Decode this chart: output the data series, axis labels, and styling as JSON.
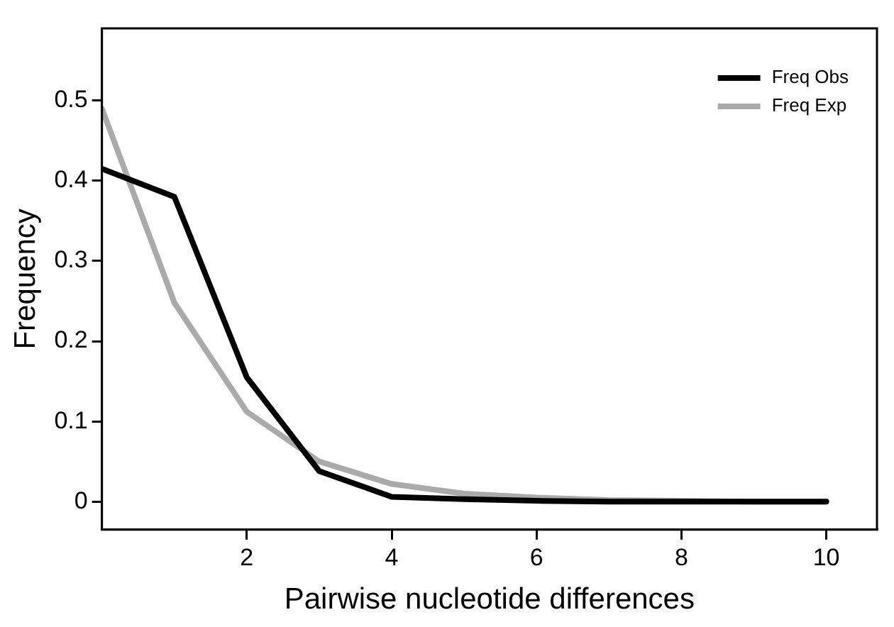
{
  "chart_data": {
    "type": "line",
    "xlabel": "Pairwise nucleotide differences",
    "ylabel": "Frequency",
    "x": [
      0,
      1,
      2,
      3,
      4,
      5,
      6,
      7,
      8,
      9,
      10
    ],
    "series": [
      {
        "name": "Freq Obs",
        "color": "#000000",
        "values": [
          0.415,
          0.38,
          0.155,
          0.038,
          0.006,
          0.003,
          0.001,
          0,
          0,
          0,
          0
        ]
      },
      {
        "name": "Freq Exp",
        "color": "#aaaaaa",
        "values": [
          0.49,
          0.248,
          0.112,
          0.05,
          0.022,
          0.01,
          0.005,
          0.002,
          0.001,
          0,
          0
        ]
      }
    ],
    "xlim": [
      0,
      10.7
    ],
    "xticks": [
      2,
      4,
      6,
      8,
      10
    ],
    "ylim": [
      -0.035,
      0.59
    ],
    "yticks": [
      0,
      0.1,
      0.2,
      0.3,
      0.4,
      0.5
    ],
    "grid": false,
    "legend": "top right",
    "marker": "none",
    "line_style": "solid"
  }
}
